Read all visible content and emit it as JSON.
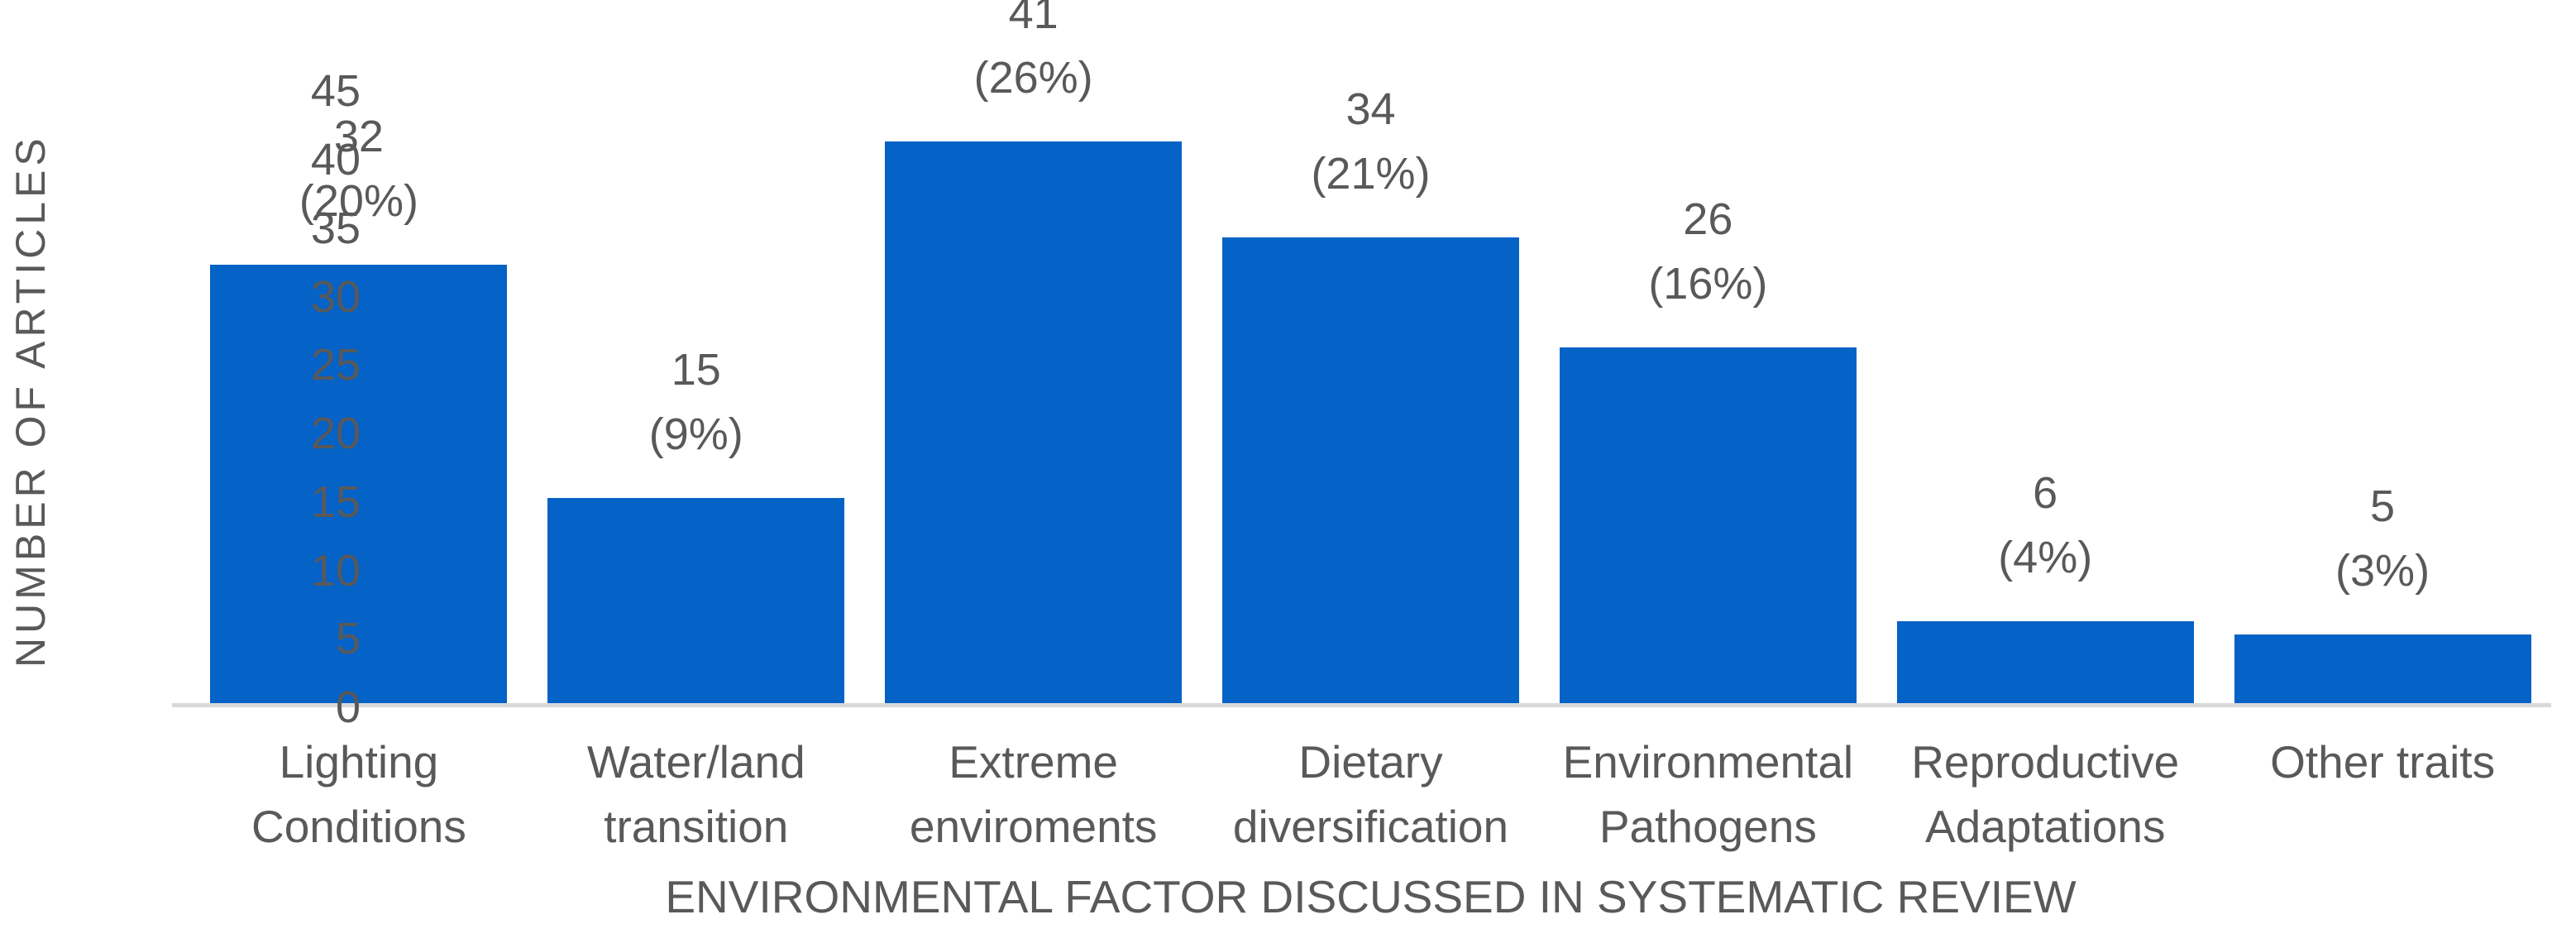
{
  "chart_data": {
    "type": "bar",
    "categories": [
      "Lighting Conditions",
      "Water/land transition",
      "Extreme enviroments",
      "Dietary diversification",
      "Environmental Pathogens",
      "Reproductive Adaptations",
      "Other traits"
    ],
    "categories_wrapped": [
      [
        "Lighting",
        "Conditions"
      ],
      [
        "Water/land",
        "transition"
      ],
      [
        "Extreme",
        "enviroments"
      ],
      [
        "Dietary",
        "diversification"
      ],
      [
        "Environmental",
        "Pathogens"
      ],
      [
        "Reproductive",
        "Adaptations"
      ],
      [
        "Other traits"
      ]
    ],
    "values": [
      32,
      15,
      41,
      34,
      26,
      6,
      5
    ],
    "percent_labels": [
      "(20%)",
      "(9%)",
      "(26%)",
      "(21%)",
      "(16%)",
      "(4%)",
      "(3%)"
    ],
    "title": "",
    "xlabel": "ENVIRONMENTAL FACTOR DISCUSSED IN SYSTEMATIC REVIEW",
    "ylabel": "NUMBER OF ARTICLES",
    "ylim": [
      0,
      45
    ],
    "ytick_step": 5,
    "ytick_labels": [
      "0",
      "5",
      "10",
      "15",
      "20",
      "25",
      "30",
      "35",
      "40",
      "45"
    ],
    "grid": false,
    "legend_position": "none",
    "colors": {
      "bar_fill": "#0562C6",
      "axis_text": "#595959",
      "baseline": "#d9d9d9",
      "background": "#ffffff"
    }
  }
}
